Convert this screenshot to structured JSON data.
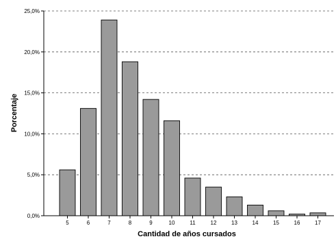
{
  "chart_data": {
    "type": "bar",
    "categories": [
      "5",
      "6",
      "7",
      "8",
      "9",
      "10",
      "11",
      "12",
      "13",
      "14",
      "15",
      "16",
      "17"
    ],
    "values": [
      5.6,
      13.1,
      23.9,
      18.8,
      14.2,
      11.6,
      4.6,
      3.5,
      2.3,
      1.3,
      0.6,
      0.2,
      0.35
    ],
    "title": "",
    "xlabel": "Cantidad de años cursados",
    "ylabel": "Porcentaje",
    "ylim": [
      0,
      25
    ],
    "yticks": [
      "0,0%",
      "5,0%",
      "10,0%",
      "15,0%",
      "20,0%",
      "25,0%"
    ],
    "ytick_values": [
      0,
      5,
      10,
      15,
      20,
      25
    ],
    "grid": true,
    "bar_color": "#9a9a9a",
    "legend": "none"
  }
}
